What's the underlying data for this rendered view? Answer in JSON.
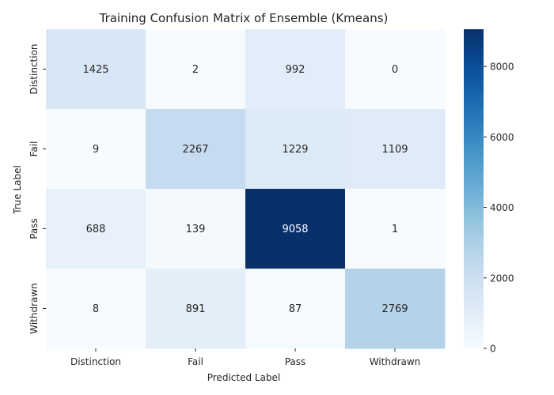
{
  "chart_data": {
    "type": "heatmap",
    "title": "Training Confusion Matrix of Ensemble (Kmeans)",
    "xlabel": "Predicted Label",
    "ylabel": "True Label",
    "x_categories": [
      "Distinction",
      "Fail",
      "Pass",
      "Withdrawn"
    ],
    "y_categories": [
      "Distinction",
      "Fail",
      "Pass",
      "Withdrawn"
    ],
    "values": [
      [
        1425,
        2,
        992,
        0
      ],
      [
        9,
        2267,
        1229,
        1109
      ],
      [
        688,
        139,
        9058,
        1
      ],
      [
        8,
        891,
        87,
        2769
      ]
    ],
    "colormap": "Blues",
    "color_range": [
      0,
      9058
    ],
    "colorbar_ticks": [
      0,
      2000,
      4000,
      6000,
      8000
    ],
    "grid": false,
    "colors": {
      "low": "#f7fbff",
      "high": "#08306b"
    }
  }
}
